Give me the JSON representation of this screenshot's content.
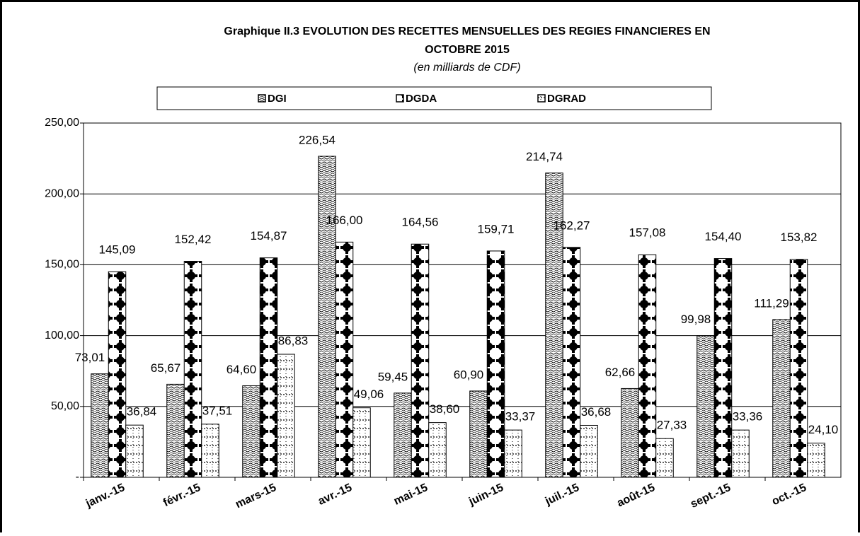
{
  "chart_data": {
    "type": "bar",
    "title": "Graphique II.3 EVOLUTION DES RECETTES MENSUELLES DES REGIES FINANCIERES  EN",
    "title_line2": "OCTOBRE  2015",
    "subtitle": "(en milliards de CDF)",
    "categories": [
      "janv.-15",
      "févr.-15",
      "mars-15",
      "avr.-15",
      "mai-15",
      "juin-15",
      "juil.-15",
      "août-15",
      "sept.-15",
      "oct.-15"
    ],
    "series": [
      {
        "name": "DGI",
        "values": [
          73.01,
          65.67,
          64.6,
          226.54,
          59.45,
          60.9,
          214.74,
          62.66,
          99.98,
          111.29
        ],
        "value_labels": [
          "73,01",
          "65,67",
          "64,60",
          "226,54",
          "59,45",
          "60,90",
          "214,74",
          "62,66",
          "99,98",
          "111,29"
        ]
      },
      {
        "name": "DGDA",
        "values": [
          145.09,
          152.42,
          154.87,
          166.0,
          164.56,
          159.71,
          162.27,
          157.08,
          154.4,
          153.82
        ],
        "value_labels": [
          "145,09",
          "152,42",
          "154,87",
          "166,00",
          "164,56",
          "159,71",
          "162,27",
          "157,08",
          "154,40",
          "153,82"
        ]
      },
      {
        "name": "DGRAD",
        "values": [
          36.84,
          37.51,
          86.83,
          49.06,
          38.6,
          33.37,
          36.68,
          27.33,
          33.36,
          24.1
        ],
        "value_labels": [
          "36,84",
          "37,51",
          "86,83",
          "49,06",
          "38,60",
          "33,37",
          "36,68",
          "27,33",
          "33,36",
          "24,10"
        ]
      }
    ],
    "ylim": [
      0,
      250
    ],
    "yticks": [
      {
        "value": 0,
        "label": "-"
      },
      {
        "value": 50,
        "label": "50,00"
      },
      {
        "value": 100,
        "label": "100,00"
      },
      {
        "value": 150,
        "label": "150,00"
      },
      {
        "value": 200,
        "label": "200,00"
      },
      {
        "value": 250,
        "label": "250,00"
      }
    ],
    "grid": true,
    "legend": "top"
  }
}
